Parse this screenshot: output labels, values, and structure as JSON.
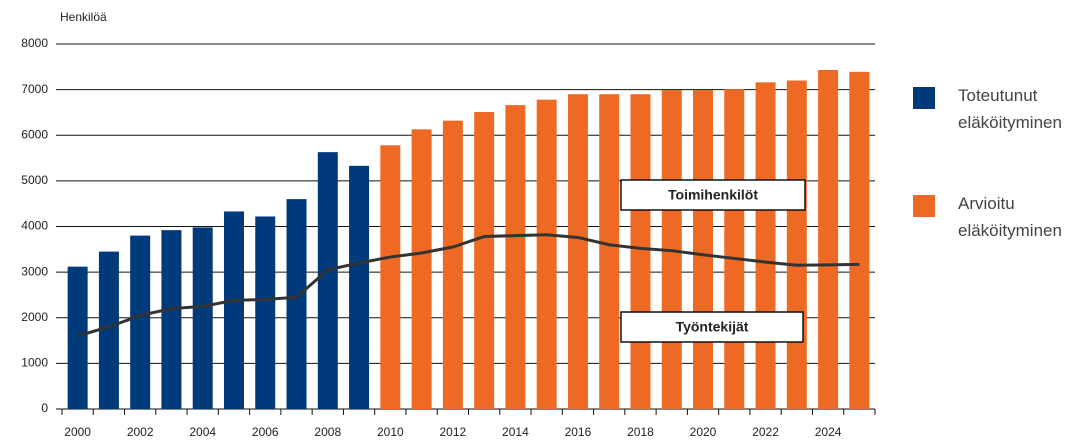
{
  "chart_data": {
    "type": "bar",
    "ylabel": "Henkilöä",
    "categories": [
      "2000",
      null,
      "2002",
      null,
      "2004",
      null,
      "2006",
      null,
      "2008",
      null,
      "2010",
      null,
      "2012",
      null,
      "2014",
      null,
      "2016",
      null,
      "2018",
      null,
      "2020",
      null,
      "2022",
      null,
      "2024",
      null
    ],
    "series": [
      {
        "name": "Toteutunut eläköityminen",
        "color": "#003a7a",
        "values": [
          3120,
          3450,
          3800,
          3920,
          3980,
          4330,
          4220,
          4600,
          5630,
          5330,
          null,
          null,
          null,
          null,
          null,
          null,
          null,
          null,
          null,
          null,
          null,
          null,
          null,
          null,
          null,
          null
        ]
      },
      {
        "name": "Arvioitu eläköityminen",
        "color": "#ee6a24",
        "values": [
          null,
          null,
          null,
          null,
          null,
          null,
          null,
          null,
          null,
          null,
          5780,
          6130,
          6320,
          6510,
          6660,
          6780,
          6900,
          6900,
          6900,
          6990,
          6990,
          7010,
          7160,
          7200,
          7430,
          7390
        ]
      }
    ],
    "line": {
      "color": "#333333",
      "values": [
        1600,
        1800,
        2050,
        2200,
        2250,
        2380,
        2400,
        2450,
        3050,
        3200,
        3330,
        3420,
        3550,
        3780,
        3800,
        3820,
        3760,
        3600,
        3520,
        3470,
        3380,
        3300,
        3220,
        3150,
        3160,
        3170
      ]
    },
    "annotations": [
      {
        "text": "Toimihenkilöt"
      },
      {
        "text": "Työntekijät"
      }
    ],
    "ylim": [
      0,
      8000
    ],
    "yticks": [
      0,
      1000,
      2000,
      3000,
      4000,
      5000,
      6000,
      7000,
      8000
    ],
    "grid": true
  }
}
